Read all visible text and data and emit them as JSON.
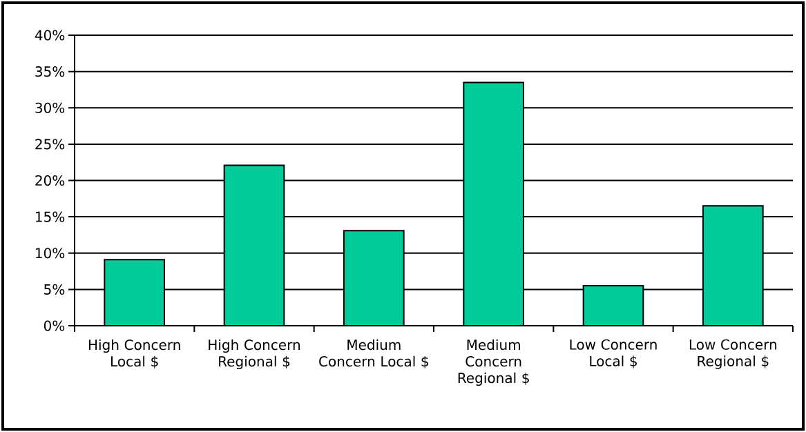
{
  "chart_data": {
    "type": "bar",
    "categories": [
      "High Concern Local $",
      "High Concern Regional $",
      "Medium Concern Local $",
      "Medium Concern Regional $",
      "Low Concern Local $",
      "Low Concern Regional $"
    ],
    "values": [
      9.1,
      22.1,
      13.1,
      33.5,
      5.5,
      16.5
    ],
    "color": "#00cc99",
    "ylim": [
      0,
      40
    ],
    "yticks": [
      {
        "value": 0,
        "label": "0%"
      },
      {
        "value": 5,
        "label": "5%"
      },
      {
        "value": 10,
        "label": "10%"
      },
      {
        "value": 15,
        "label": "15%"
      },
      {
        "value": 20,
        "label": "20%"
      },
      {
        "value": 25,
        "label": "25%"
      },
      {
        "value": 30,
        "label": "30%"
      },
      {
        "value": 35,
        "label": "35%"
      },
      {
        "value": 40,
        "label": "40%"
      }
    ],
    "grid": "y"
  }
}
